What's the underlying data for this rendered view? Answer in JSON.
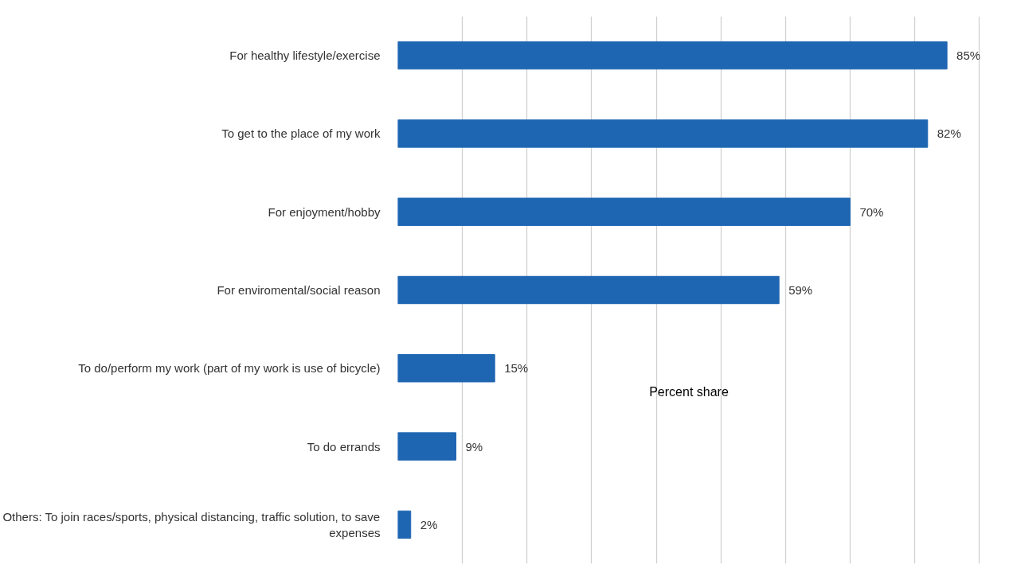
{
  "chart_data": {
    "type": "bar",
    "orientation": "horizontal",
    "categories": [
      "For healthy lifestyle/exercise",
      "To get to the place of my work",
      "For enjoyment/hobby",
      "For enviromental/social reason",
      "To do/perform my work (part of my work is use of bicycle)",
      "To do errands",
      "Others: To join races/sports, physical distancing, traffic solution, to save expenses"
    ],
    "values": [
      85,
      82,
      70,
      59,
      15,
      9,
      2
    ],
    "value_labels": [
      "85%",
      "82%",
      "70%",
      "59%",
      "15%",
      "9%",
      "2%"
    ],
    "color": "#1f66b2",
    "tick_labels": "y",
    "grid": "x",
    "annotations": [
      "Percent share"
    ]
  }
}
